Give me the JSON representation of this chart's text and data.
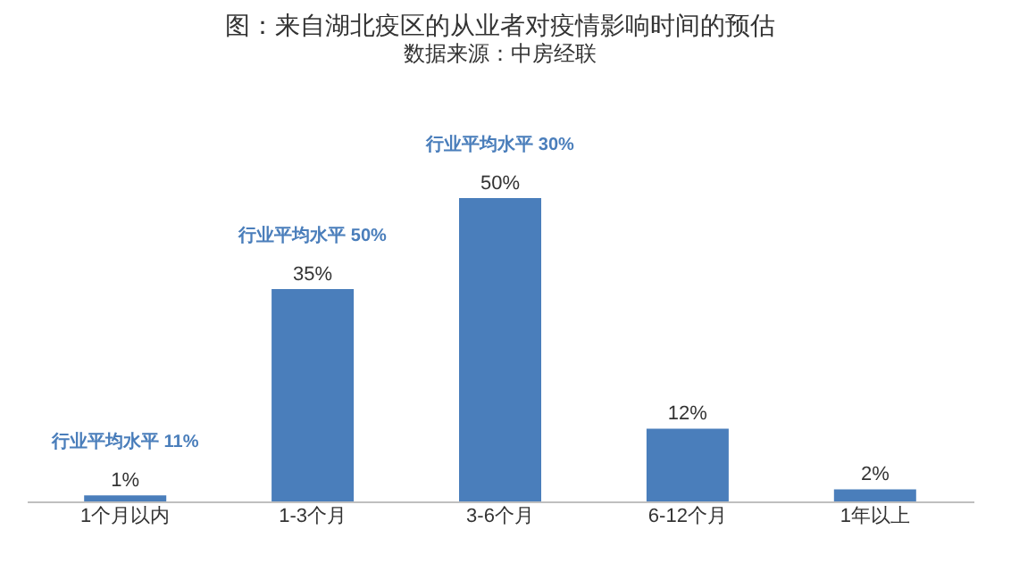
{
  "chart_data": {
    "type": "bar",
    "title": "图：来自湖北疫区的从业者对疫情影响时间的预估",
    "categories": [
      "1个月以内",
      "1-3个月",
      "3-6个月",
      "6-12个月",
      "1年以上"
    ],
    "values": [
      1,
      35,
      50,
      12,
      2
    ],
    "color": "#4a7ebb",
    "data_labels": true,
    "value_labels": [
      "1%",
      "35%",
      "50%",
      "12%",
      "2%"
    ],
    "grid": false,
    "annotations": [
      "行业平均水平 11%",
      "行业平均水平 50%",
      "行业平均水平 30%",
      "数据来源：中房经联"
    ]
  }
}
